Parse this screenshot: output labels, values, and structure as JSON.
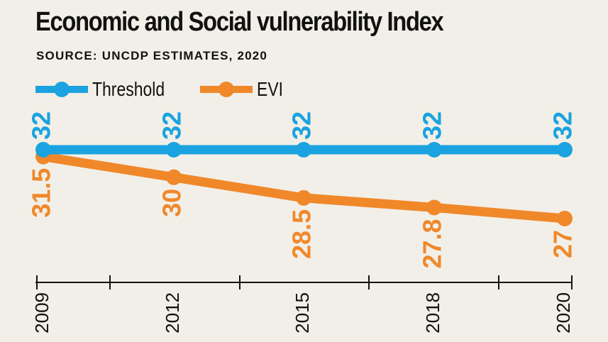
{
  "chart_data": {
    "type": "line",
    "title": "Economic and Social vulnerability Index",
    "subtitle": "SOURCE: UNCDP ESTIMATES, 2020",
    "x": [
      "2009",
      "2012",
      "2015",
      "2018",
      "2020"
    ],
    "series": [
      {
        "name": "Threshold",
        "values": [
          32,
          32,
          32,
          32,
          32
        ],
        "labels": [
          "32",
          "32",
          "32",
          "32",
          "32"
        ],
        "color": "#1aa3e0"
      },
      {
        "name": "EVI",
        "values": [
          31.5,
          30,
          28.5,
          27.8,
          27
        ],
        "labels": [
          "31.5",
          "30",
          "28.5",
          "27.8",
          "27"
        ],
        "color": "#f0882a"
      }
    ],
    "ylim": [
      27,
      32
    ],
    "legend": "top-left",
    "grid": false
  }
}
